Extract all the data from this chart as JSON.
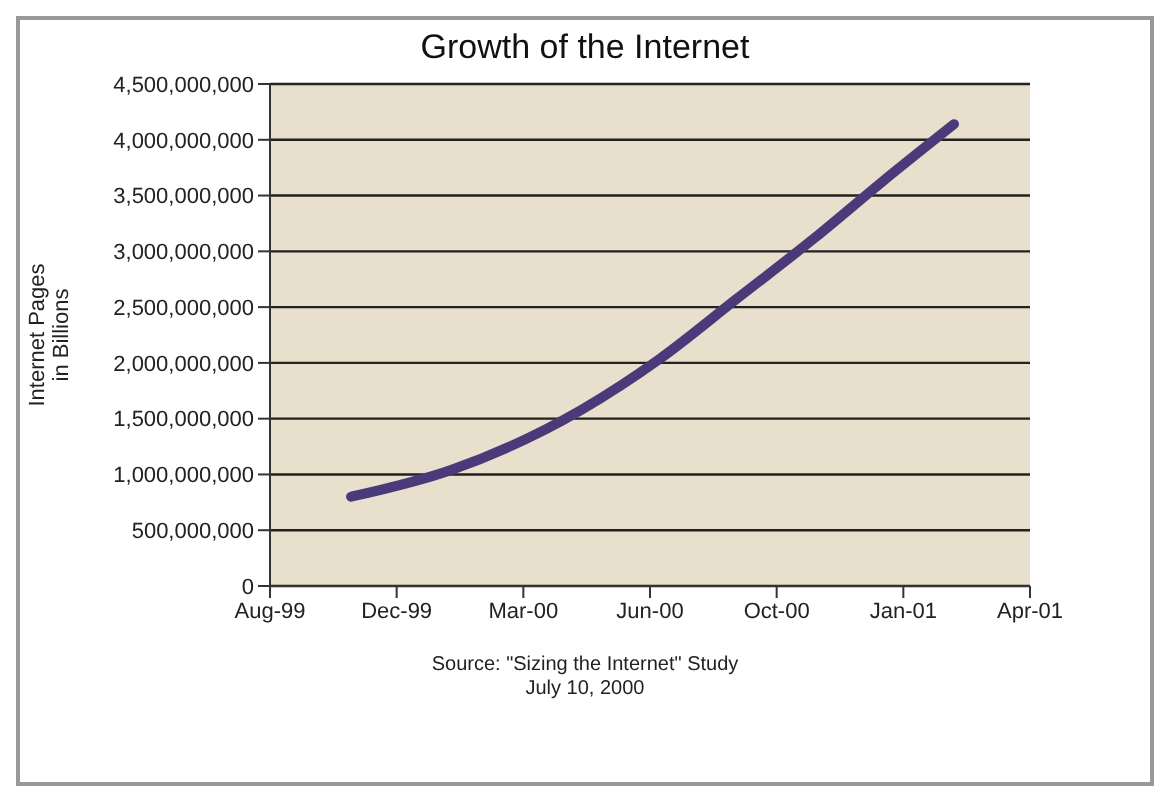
{
  "chart_data": {
    "type": "line",
    "title": "Growth of the Internet",
    "ylabel": "Internet Pages\nin Billions",
    "x": [
      "1999-11-03",
      "2000-01-21",
      "2000-05-03",
      "2000-07-03",
      "2000-09-02",
      "2000-11-03",
      "2000-12-27",
      "2001-02-21"
    ],
    "series": [
      {
        "color": "#4b3a7a",
        "values": [
          800000000,
          1040000000,
          1580000000,
          2030000000,
          2570000000,
          3120000000,
          3630000000,
          4140000000
        ]
      }
    ],
    "xlim": [
      "1999-08-31",
      "2001-04-22"
    ],
    "xticks": [
      {
        "value": "1999-08-31",
        "label": "Aug-99"
      },
      {
        "value": "1999-12-09",
        "label": "Dec-99"
      },
      {
        "value": "2000-03-18",
        "label": "Mar-00"
      },
      {
        "value": "2000-06-26",
        "label": "Jun-00"
      },
      {
        "value": "2000-10-04",
        "label": "Oct-00"
      },
      {
        "value": "2001-01-12",
        "label": "Jan-01"
      },
      {
        "value": "2001-04-22",
        "label": "Apr-01"
      }
    ],
    "ylim": [
      0,
      4500000000
    ],
    "yticks": [
      0,
      {
        "value": 500000000,
        "label": "500,000,000"
      },
      {
        "value": 1000000000,
        "label": "1,000,000,000"
      },
      {
        "value": 1500000000,
        "label": "1,500,000,000"
      },
      {
        "value": 2000000000,
        "label": "2,000,000,000"
      },
      {
        "value": 2500000000,
        "label": "2,500,000,000"
      },
      {
        "value": 3000000000,
        "label": "3,000,000,000"
      },
      {
        "value": 3500000000,
        "label": "3,500,000,000"
      },
      {
        "value": 4000000000,
        "label": "4,000,000,000"
      },
      {
        "value": 4500000000,
        "label": "4,500,000,000"
      }
    ],
    "grid": "y",
    "legend": false,
    "marker": "none",
    "line_style": "solid",
    "annotations": [
      "Source: \"Sizing the Internet\" Study",
      "July 10, 2000"
    ]
  }
}
